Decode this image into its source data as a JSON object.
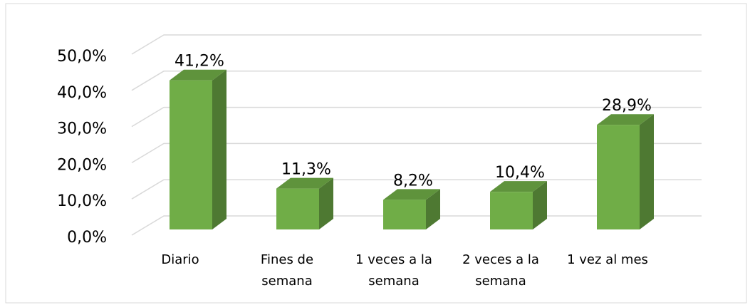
{
  "chart_data": {
    "type": "bar3d",
    "categories": [
      "Diario",
      "Fines de semana",
      "1 veces a la semana",
      "2 veces a la semana",
      "1 vez al mes"
    ],
    "values": [
      41.2,
      11.3,
      8.2,
      10.4,
      28.9
    ],
    "value_labels": [
      "41,2%",
      "11,3%",
      "8,2%",
      "10,4%",
      "28,9%"
    ],
    "color": "#70ad47",
    "ylim": [
      0,
      50
    ],
    "yticks": [
      {
        "value": 0,
        "label": "0,0%"
      },
      {
        "value": 10,
        "label": "10,0%"
      },
      {
        "value": 20,
        "label": "20,0%"
      },
      {
        "value": 30,
        "label": "30,0%"
      },
      {
        "value": 40,
        "label": "40,0%"
      },
      {
        "value": 50,
        "label": "50,0%"
      }
    ],
    "grid": true
  }
}
